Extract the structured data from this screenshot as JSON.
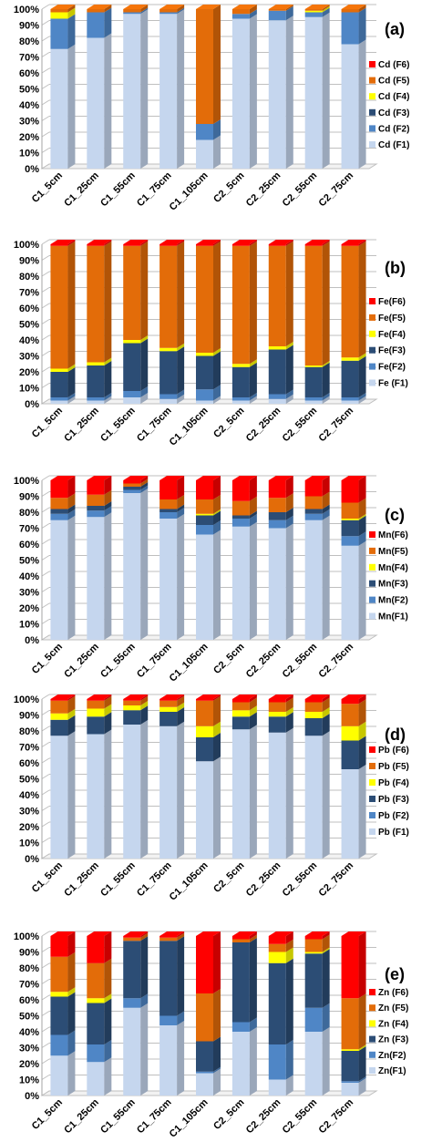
{
  "chart_data": [
    {
      "panel_label": "(a)",
      "type": "bar",
      "stacked": true,
      "percent": true,
      "categories": [
        "C1_5cm",
        "C1_25cm",
        "C1_55cm",
        "C1_75cm",
        "C1_105cm",
        "C2_5cm",
        "C2_25cm",
        "C2_55cm",
        "C2_75cm"
      ],
      "ylim": [
        0,
        100
      ],
      "ytick_labels": [
        "0%",
        "10%",
        "20%",
        "30%",
        "40%",
        "50%",
        "60%",
        "70%",
        "80%",
        "90%",
        "100%"
      ],
      "grid": true,
      "legend_position": "right",
      "series": [
        {
          "name": "Cd (F1)",
          "color": "#c5d6ee",
          "values": [
            75,
            82,
            97,
            97,
            18,
            94,
            93,
            95,
            78
          ]
        },
        {
          "name": "Cd (F2)",
          "color": "#4f86c6",
          "values": [
            19,
            16,
            1,
            1,
            10,
            3,
            6,
            3,
            20
          ]
        },
        {
          "name": "Cd (F3)",
          "color": "#2c4d75",
          "values": [
            0,
            0,
            0,
            0,
            0,
            0,
            0,
            0,
            0
          ]
        },
        {
          "name": "Cd (F4)",
          "color": "#ffff00",
          "values": [
            4,
            0,
            0,
            0,
            0,
            0,
            0,
            1,
            0
          ]
        },
        {
          "name": "Cd (F5)",
          "color": "#e36c09",
          "values": [
            2,
            2,
            2,
            2,
            72,
            3,
            1,
            1,
            2
          ]
        },
        {
          "name": "Cd (F6)",
          "color": "#ff0000",
          "values": [
            0,
            0,
            0,
            0,
            0,
            0,
            0,
            0,
            0
          ]
        }
      ]
    },
    {
      "panel_label": "(b)",
      "type": "bar",
      "stacked": true,
      "percent": true,
      "categories": [
        "C1_5cm",
        "C1_25cm",
        "C1_55cm",
        "C1_75cm",
        "C1_105cm",
        "C2_5cm",
        "C2_25cm",
        "C2_55cm",
        "C2_75cm"
      ],
      "ylim": [
        0,
        100
      ],
      "ytick_labels": [
        "0%",
        "10%",
        "20%",
        "30%",
        "40%",
        "50%",
        "60%",
        "70%",
        "80%",
        "90%",
        "100%"
      ],
      "grid": true,
      "legend_position": "right",
      "series": [
        {
          "name": "Fe (F1)",
          "color": "#c5d6ee",
          "values": [
            2,
            2,
            4,
            3,
            2,
            2,
            3,
            2,
            2
          ]
        },
        {
          "name": "Fe(F2)",
          "color": "#4f86c6",
          "values": [
            2,
            2,
            4,
            3,
            7,
            2,
            3,
            2,
            2
          ]
        },
        {
          "name": "Fe(F3)",
          "color": "#2c4d75",
          "values": [
            16,
            20,
            30,
            27,
            21,
            19,
            28,
            19,
            23
          ]
        },
        {
          "name": "Fe(F4)",
          "color": "#ffff00",
          "values": [
            2,
            2,
            2,
            2,
            2,
            2,
            2,
            1,
            2
          ]
        },
        {
          "name": "Fe(F5)",
          "color": "#e36c09",
          "values": [
            77,
            73,
            59,
            64,
            67,
            74,
            63,
            75,
            70
          ]
        },
        {
          "name": "Fe(F6)",
          "color": "#ff0000",
          "values": [
            1,
            1,
            1,
            1,
            1,
            1,
            1,
            1,
            1
          ]
        }
      ]
    },
    {
      "panel_label": "(c)",
      "type": "bar",
      "stacked": true,
      "percent": true,
      "categories": [
        "C1_5cm",
        "C1_25cm",
        "C1_55cm",
        "C1_75cm",
        "C1_105cm",
        "C2_5cm",
        "C2_25cm",
        "C2_55cm",
        "C2_75cm"
      ],
      "ylim": [
        0,
        100
      ],
      "ytick_labels": [
        "0%",
        "10%",
        "20%",
        "30%",
        "40%",
        "50%",
        "60%",
        "70%",
        "80%",
        "90%",
        "100%"
      ],
      "grid": true,
      "legend_position": "right",
      "series": [
        {
          "name": "Mn(F1)",
          "color": "#c5d6ee",
          "values": [
            75,
            77,
            92,
            76,
            66,
            71,
            70,
            75,
            59
          ]
        },
        {
          "name": "Mn(F2)",
          "color": "#4f86c6",
          "values": [
            4,
            4,
            2,
            4,
            6,
            5,
            5,
            4,
            6
          ]
        },
        {
          "name": "Mn(F3)",
          "color": "#2c4d75",
          "values": [
            3,
            3,
            2,
            2,
            6,
            2,
            5,
            3,
            10
          ]
        },
        {
          "name": "Mn(F4)",
          "color": "#ffff00",
          "values": [
            0,
            0,
            0,
            0,
            1,
            0,
            0,
            0,
            1
          ]
        },
        {
          "name": "Mn(F5)",
          "color": "#e36c09",
          "values": [
            7,
            7,
            2,
            6,
            9,
            9,
            9,
            8,
            10
          ]
        },
        {
          "name": "Mn(F6)",
          "color": "#ff0000",
          "values": [
            11,
            9,
            2,
            12,
            12,
            13,
            11,
            10,
            14
          ]
        }
      ]
    },
    {
      "panel_label": "(d)",
      "type": "bar",
      "stacked": true,
      "percent": true,
      "categories": [
        "C1_5cm",
        "C1_25cm",
        "C1_55cm",
        "C1_75cm",
        "C1_105cm",
        "C2_5cm",
        "C2_25cm",
        "C2_55cm",
        "C2_75cm"
      ],
      "ylim": [
        0,
        100
      ],
      "ytick_labels": [
        "0%",
        "10%",
        "20%",
        "30%",
        "40%",
        "50%",
        "60%",
        "70%",
        "80%",
        "90%",
        "100%"
      ],
      "grid": true,
      "legend_position": "right",
      "series": [
        {
          "name": "Pb (F1)",
          "color": "#c5d6ee",
          "values": [
            77,
            78,
            84,
            83,
            61,
            81,
            79,
            77,
            56
          ]
        },
        {
          "name": "Pb (F2)",
          "color": "#4f86c6",
          "values": [
            0,
            0,
            0,
            0,
            0,
            0,
            0,
            0,
            0
          ]
        },
        {
          "name": "Pb (F3)",
          "color": "#2c4d75",
          "values": [
            10,
            11,
            9,
            9,
            15,
            8,
            10,
            11,
            18
          ]
        },
        {
          "name": "Pb (F4)",
          "color": "#ffff00",
          "values": [
            4,
            5,
            3,
            3,
            7,
            4,
            3,
            4,
            9
          ]
        },
        {
          "name": "Pb (F5)",
          "color": "#e36c09",
          "values": [
            8,
            5,
            3,
            4,
            16,
            5,
            6,
            6,
            14
          ]
        },
        {
          "name": "Pb (F6)",
          "color": "#ff0000",
          "values": [
            1,
            1,
            1,
            1,
            1,
            2,
            2,
            2,
            3
          ]
        }
      ]
    },
    {
      "panel_label": "(e)",
      "type": "bar",
      "stacked": true,
      "percent": true,
      "categories": [
        "C1_5cm",
        "C1_25cm",
        "C1_55cm",
        "C1_75cm",
        "C1_105cm",
        "C2_5cm",
        "C2_25cm",
        "C2_55cm",
        "C2_75cm"
      ],
      "ylim": [
        0,
        100
      ],
      "ytick_labels": [
        "0%",
        "10%",
        "20%",
        "30%",
        "40%",
        "50%",
        "60%",
        "70%",
        "80%",
        "90%",
        "100%"
      ],
      "grid": true,
      "legend_position": "right",
      "series": [
        {
          "name": "Zn(F1)",
          "color": "#c5d6ee",
          "values": [
            25,
            21,
            55,
            44,
            14,
            40,
            10,
            40,
            8
          ]
        },
        {
          "name": "Zn(F2)",
          "color": "#4f86c6",
          "values": [
            13,
            11,
            6,
            6,
            1,
            6,
            22,
            15,
            1
          ]
        },
        {
          "name": "Zn (F3)",
          "color": "#2c4d75",
          "values": [
            24,
            26,
            36,
            47,
            19,
            50,
            51,
            34,
            19
          ]
        },
        {
          "name": "Zn (F4)",
          "color": "#ffff00",
          "values": [
            3,
            3,
            0,
            0,
            0,
            0,
            7,
            1,
            1
          ]
        },
        {
          "name": "Zn (F5)",
          "color": "#e36c09",
          "values": [
            22,
            22,
            2,
            2,
            30,
            2,
            5,
            8,
            32
          ]
        },
        {
          "name": "Zn (F6)",
          "color": "#ff0000",
          "values": [
            13,
            17,
            1,
            1,
            36,
            2,
            5,
            2,
            39
          ]
        }
      ]
    }
  ]
}
